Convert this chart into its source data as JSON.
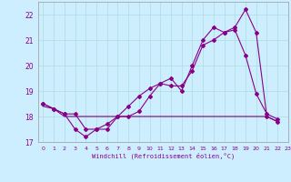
{
  "title": "",
  "xlabel": "Windchill (Refroidissement éolien,°C)",
  "ylabel": "",
  "bg_color": "#cceeff",
  "line_color": "#880088",
  "grid_color": "#aadddd",
  "xlim": [
    -0.5,
    23
  ],
  "ylim": [
    17,
    22.5
  ],
  "yticks": [
    17,
    18,
    19,
    20,
    21,
    22
  ],
  "xticks": [
    0,
    1,
    2,
    3,
    4,
    5,
    6,
    7,
    8,
    9,
    10,
    11,
    12,
    13,
    14,
    15,
    16,
    17,
    18,
    19,
    20,
    21,
    22,
    23
  ],
  "series1_x": [
    0,
    1,
    2,
    3,
    4,
    5,
    6,
    7,
    8,
    9,
    10,
    11,
    12,
    13,
    14,
    15,
    16,
    17,
    18,
    19,
    20,
    21,
    22
  ],
  "series1_y": [
    18.5,
    18.3,
    18.1,
    17.5,
    17.2,
    17.5,
    17.7,
    18.0,
    18.4,
    18.8,
    19.1,
    19.3,
    19.2,
    19.2,
    19.8,
    20.8,
    21.0,
    21.3,
    21.5,
    22.2,
    21.3,
    18.0,
    17.8
  ],
  "series2_x": [
    0,
    1,
    2,
    3,
    4,
    5,
    6,
    7,
    8,
    9,
    10,
    11,
    12,
    13,
    14,
    15,
    16,
    17,
    18,
    19,
    20,
    21,
    22
  ],
  "series2_y": [
    18.5,
    18.3,
    18.1,
    18.1,
    17.5,
    17.5,
    17.5,
    18.0,
    18.0,
    18.2,
    18.8,
    19.3,
    19.5,
    19.0,
    20.0,
    21.0,
    21.5,
    21.3,
    21.4,
    20.4,
    18.9,
    18.1,
    17.9
  ],
  "series3_x": [
    0,
    1,
    2,
    3,
    4,
    5,
    6,
    7,
    8,
    9,
    10,
    11,
    12,
    13,
    14,
    15,
    16,
    17,
    18,
    19,
    20,
    21,
    22
  ],
  "series3_y": [
    18.4,
    18.3,
    18.0,
    18.0,
    18.0,
    18.0,
    18.0,
    18.0,
    18.0,
    18.0,
    18.0,
    18.0,
    18.0,
    18.0,
    18.0,
    18.0,
    18.0,
    18.0,
    18.0,
    18.0,
    18.0,
    18.0,
    17.8
  ]
}
